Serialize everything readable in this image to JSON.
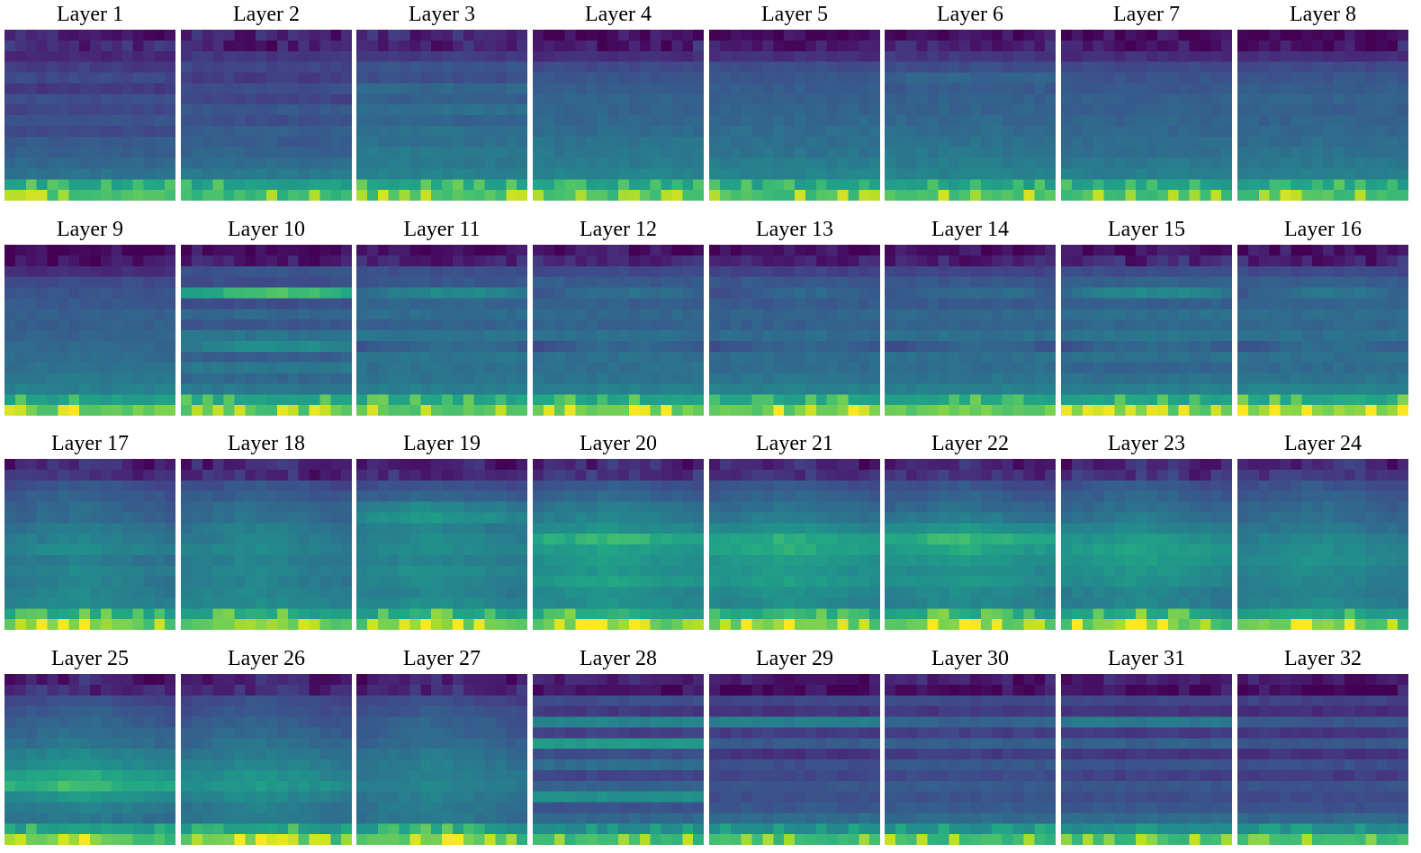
{
  "figure": {
    "background": "#ffffff"
  },
  "chart_data": {
    "type": "heatmap",
    "colormap": "viridis",
    "grid_size": [
      16,
      16
    ],
    "layout": {
      "rows": 4,
      "cols": 8
    },
    "axes_visible": false,
    "panels": [
      {
        "title": "Layer 1",
        "profile": "early",
        "rows": [
          0.12,
          0.17,
          0.14,
          0.22,
          0.27,
          0.2,
          0.3,
          0.26,
          0.33,
          0.28,
          0.36,
          0.38,
          0.42,
          0.47,
          0.72,
          0.82
        ]
      },
      {
        "title": "Layer 2",
        "profile": "early",
        "rows": [
          0.14,
          0.11,
          0.2,
          0.26,
          0.22,
          0.3,
          0.25,
          0.34,
          0.3,
          0.38,
          0.36,
          0.4,
          0.44,
          0.5,
          0.7,
          0.8
        ]
      },
      {
        "title": "Layer 3",
        "profile": "early",
        "rows": [
          0.16,
          0.14,
          0.22,
          0.33,
          0.3,
          0.42,
          0.38,
          0.45,
          0.4,
          0.47,
          0.46,
          0.52,
          0.5,
          0.55,
          0.72,
          0.82
        ]
      },
      {
        "title": "Layer 4",
        "profile": "mid",
        "rows": [
          0.06,
          0.1,
          0.16,
          0.28,
          0.33,
          0.37,
          0.4,
          0.4,
          0.42,
          0.44,
          0.48,
          0.5,
          0.52,
          0.56,
          0.7,
          0.82
        ]
      },
      {
        "title": "Layer 5",
        "profile": "mid",
        "rows": [
          0.06,
          0.1,
          0.17,
          0.3,
          0.34,
          0.37,
          0.38,
          0.4,
          0.42,
          0.44,
          0.46,
          0.48,
          0.52,
          0.56,
          0.7,
          0.82
        ]
      },
      {
        "title": "Layer 6",
        "profile": "mid",
        "rows": [
          0.06,
          0.12,
          0.2,
          0.3,
          0.4,
          0.36,
          0.38,
          0.4,
          0.42,
          0.44,
          0.47,
          0.5,
          0.52,
          0.56,
          0.7,
          0.82
        ]
      },
      {
        "title": "Layer 7",
        "profile": "mid",
        "rows": [
          0.05,
          0.08,
          0.16,
          0.28,
          0.33,
          0.35,
          0.38,
          0.38,
          0.4,
          0.42,
          0.44,
          0.46,
          0.5,
          0.54,
          0.7,
          0.82
        ]
      },
      {
        "title": "Layer 8",
        "profile": "mid",
        "rows": [
          0.05,
          0.08,
          0.17,
          0.28,
          0.33,
          0.36,
          0.4,
          0.38,
          0.4,
          0.42,
          0.44,
          0.47,
          0.5,
          0.54,
          0.7,
          0.82
        ]
      },
      {
        "title": "Layer 9",
        "profile": "mid",
        "rows": [
          0.03,
          0.06,
          0.16,
          0.28,
          0.33,
          0.35,
          0.38,
          0.38,
          0.4,
          0.42,
          0.44,
          0.46,
          0.5,
          0.54,
          0.7,
          0.86
        ]
      },
      {
        "title": "Layer 10",
        "profile": "stripe",
        "rows": [
          0.06,
          0.1,
          0.32,
          0.3,
          0.82,
          0.3,
          0.42,
          0.34,
          0.48,
          0.62,
          0.38,
          0.5,
          0.42,
          0.5,
          0.72,
          0.84
        ]
      },
      {
        "title": "Layer 11",
        "profile": "stripe",
        "rows": [
          0.06,
          0.12,
          0.3,
          0.34,
          0.58,
          0.4,
          0.44,
          0.4,
          0.48,
          0.44,
          0.48,
          0.46,
          0.48,
          0.54,
          0.72,
          0.84
        ]
      },
      {
        "title": "Layer 12",
        "profile": "stripe",
        "rows": [
          0.08,
          0.14,
          0.28,
          0.36,
          0.46,
          0.38,
          0.42,
          0.4,
          0.46,
          0.42,
          0.46,
          0.46,
          0.48,
          0.54,
          0.72,
          0.86
        ]
      },
      {
        "title": "Layer 13",
        "profile": "stripe",
        "rows": [
          0.06,
          0.12,
          0.24,
          0.34,
          0.42,
          0.36,
          0.4,
          0.38,
          0.44,
          0.4,
          0.44,
          0.44,
          0.48,
          0.54,
          0.72,
          0.86
        ]
      },
      {
        "title": "Layer 14",
        "profile": "stripe",
        "rows": [
          0.06,
          0.12,
          0.26,
          0.34,
          0.44,
          0.36,
          0.42,
          0.4,
          0.46,
          0.4,
          0.46,
          0.44,
          0.48,
          0.54,
          0.72,
          0.86
        ]
      },
      {
        "title": "Layer 15",
        "profile": "stripe",
        "rows": [
          0.08,
          0.16,
          0.3,
          0.4,
          0.58,
          0.38,
          0.46,
          0.42,
          0.48,
          0.44,
          0.46,
          0.4,
          0.46,
          0.54,
          0.72,
          0.86
        ]
      },
      {
        "title": "Layer 16",
        "profile": "stripe",
        "rows": [
          0.08,
          0.14,
          0.28,
          0.38,
          0.48,
          0.4,
          0.44,
          0.42,
          0.46,
          0.44,
          0.46,
          0.44,
          0.48,
          0.56,
          0.74,
          0.9
        ]
      },
      {
        "title": "Layer 17",
        "profile": "blob",
        "rows": [
          0.18,
          0.18,
          0.32,
          0.38,
          0.42,
          0.44,
          0.5,
          0.54,
          0.58,
          0.52,
          0.56,
          0.54,
          0.56,
          0.58,
          0.74,
          0.88
        ]
      },
      {
        "title": "Layer 18",
        "profile": "blob",
        "rows": [
          0.16,
          0.18,
          0.32,
          0.38,
          0.44,
          0.46,
          0.52,
          0.54,
          0.58,
          0.54,
          0.56,
          0.54,
          0.56,
          0.58,
          0.74,
          0.88
        ]
      },
      {
        "title": "Layer 19",
        "profile": "blob",
        "rows": [
          0.14,
          0.18,
          0.32,
          0.4,
          0.56,
          0.64,
          0.54,
          0.58,
          0.6,
          0.56,
          0.6,
          0.58,
          0.56,
          0.6,
          0.74,
          0.88
        ]
      },
      {
        "title": "Layer 20",
        "profile": "blob",
        "rows": [
          0.16,
          0.2,
          0.34,
          0.42,
          0.5,
          0.56,
          0.62,
          0.78,
          0.7,
          0.66,
          0.64,
          0.7,
          0.62,
          0.62,
          0.76,
          0.88
        ]
      },
      {
        "title": "Layer 21",
        "profile": "blob",
        "rows": [
          0.18,
          0.22,
          0.34,
          0.4,
          0.46,
          0.52,
          0.62,
          0.74,
          0.74,
          0.68,
          0.66,
          0.68,
          0.62,
          0.6,
          0.76,
          0.88
        ]
      },
      {
        "title": "Layer 22",
        "profile": "blob",
        "rows": [
          0.16,
          0.2,
          0.32,
          0.38,
          0.44,
          0.52,
          0.64,
          0.78,
          0.72,
          0.66,
          0.62,
          0.64,
          0.58,
          0.58,
          0.74,
          0.88
        ]
      },
      {
        "title": "Layer 23",
        "profile": "blob",
        "rows": [
          0.16,
          0.22,
          0.34,
          0.4,
          0.44,
          0.5,
          0.58,
          0.66,
          0.7,
          0.68,
          0.64,
          0.62,
          0.56,
          0.56,
          0.74,
          0.88
        ]
      },
      {
        "title": "Layer 24",
        "profile": "blob",
        "rows": [
          0.18,
          0.22,
          0.32,
          0.38,
          0.42,
          0.46,
          0.5,
          0.56,
          0.6,
          0.62,
          0.58,
          0.56,
          0.54,
          0.56,
          0.72,
          0.88
        ]
      },
      {
        "title": "Layer 25",
        "profile": "blob",
        "rows": [
          0.14,
          0.18,
          0.3,
          0.36,
          0.4,
          0.44,
          0.48,
          0.56,
          0.62,
          0.74,
          0.8,
          0.64,
          0.54,
          0.5,
          0.7,
          0.86
        ]
      },
      {
        "title": "Layer 26",
        "profile": "blob",
        "rows": [
          0.14,
          0.18,
          0.3,
          0.34,
          0.38,
          0.42,
          0.46,
          0.5,
          0.56,
          0.62,
          0.66,
          0.58,
          0.52,
          0.5,
          0.7,
          0.86
        ]
      },
      {
        "title": "Layer 27",
        "profile": "blob",
        "rows": [
          0.12,
          0.16,
          0.28,
          0.34,
          0.38,
          0.4,
          0.44,
          0.48,
          0.52,
          0.54,
          0.56,
          0.52,
          0.5,
          0.5,
          0.7,
          0.86
        ]
      },
      {
        "title": "Layer 28",
        "profile": "late",
        "rows": [
          0.14,
          0.06,
          0.3,
          0.2,
          0.56,
          0.24,
          0.68,
          0.3,
          0.44,
          0.26,
          0.4,
          0.62,
          0.32,
          0.42,
          0.6,
          0.8
        ]
      },
      {
        "title": "Layer 29",
        "profile": "late",
        "rows": [
          0.1,
          0.04,
          0.26,
          0.18,
          0.54,
          0.22,
          0.36,
          0.18,
          0.3,
          0.26,
          0.34,
          0.3,
          0.34,
          0.44,
          0.6,
          0.8
        ]
      },
      {
        "title": "Layer 30",
        "profile": "late",
        "rows": [
          0.12,
          0.06,
          0.28,
          0.2,
          0.4,
          0.24,
          0.38,
          0.22,
          0.34,
          0.28,
          0.36,
          0.32,
          0.36,
          0.44,
          0.62,
          0.8
        ]
      },
      {
        "title": "Layer 31",
        "profile": "late",
        "rows": [
          0.12,
          0.04,
          0.26,
          0.18,
          0.5,
          0.22,
          0.38,
          0.2,
          0.32,
          0.24,
          0.34,
          0.3,
          0.34,
          0.44,
          0.6,
          0.8
        ]
      },
      {
        "title": "Layer 32",
        "profile": "late",
        "rows": [
          0.1,
          0.04,
          0.24,
          0.16,
          0.34,
          0.2,
          0.34,
          0.18,
          0.3,
          0.22,
          0.32,
          0.28,
          0.32,
          0.42,
          0.6,
          0.8
        ]
      }
    ]
  }
}
